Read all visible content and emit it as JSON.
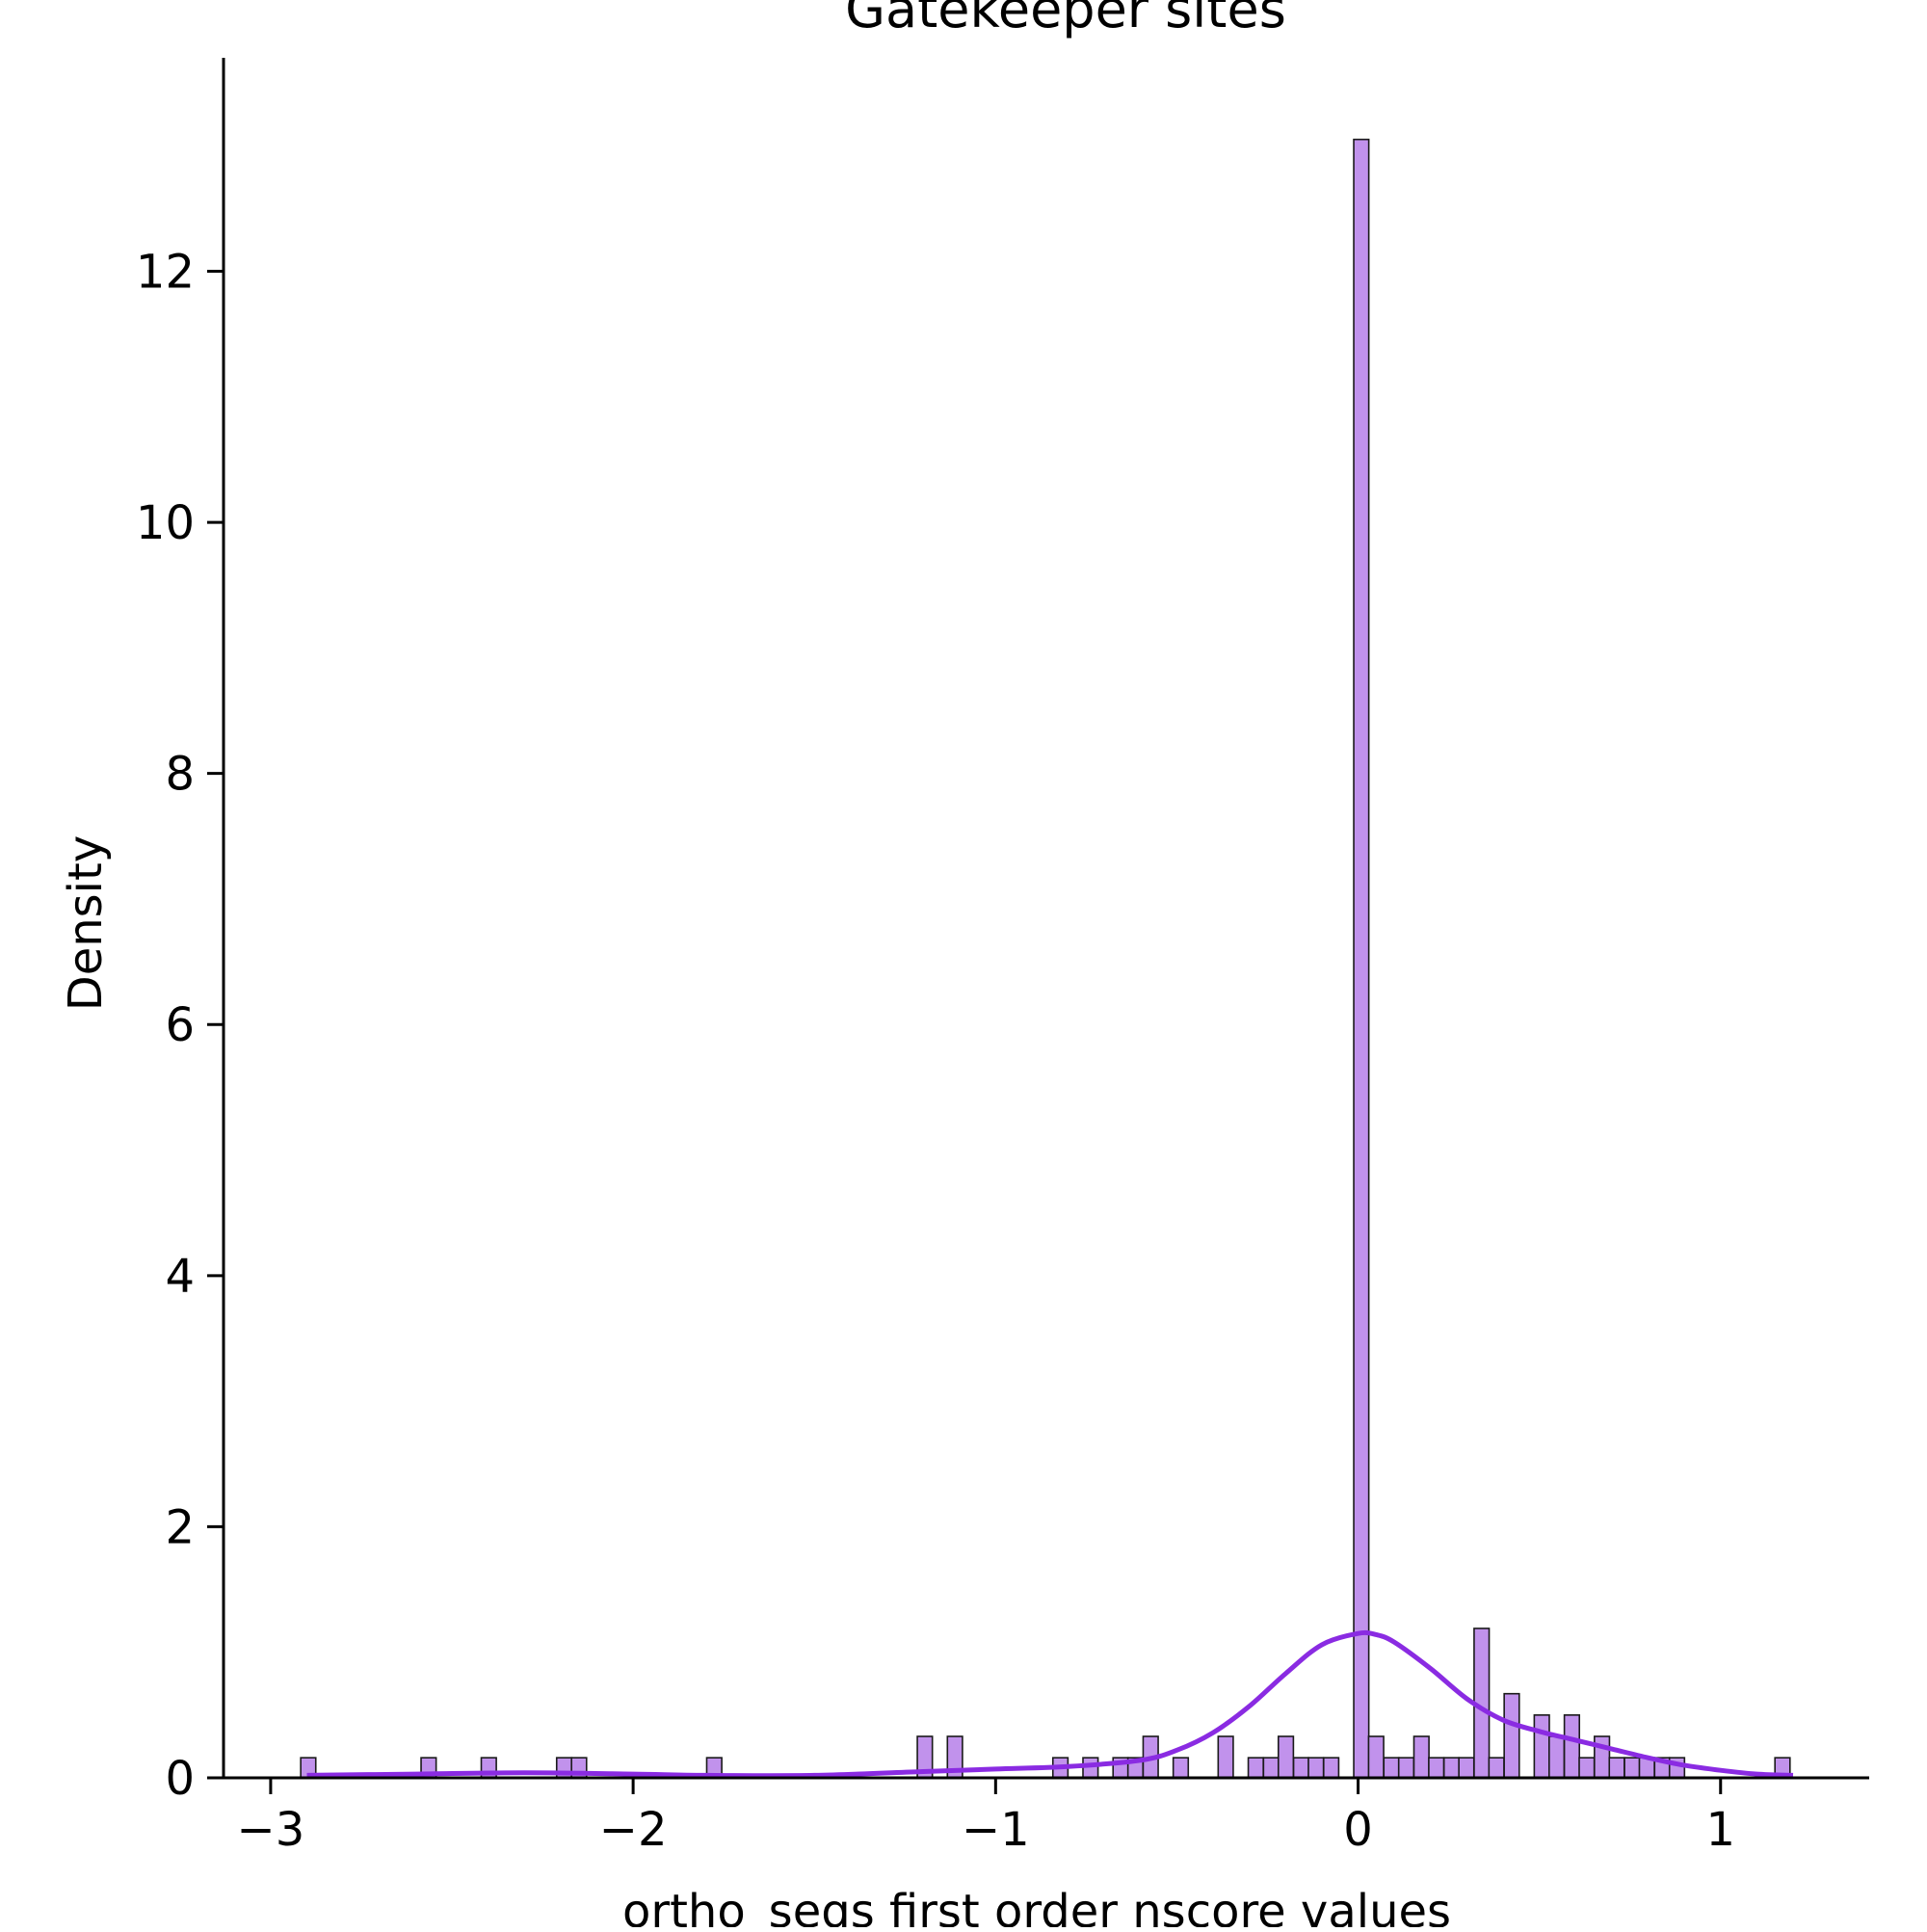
{
  "chart_data": {
    "type": "bar",
    "title": "Gatekeeper sites",
    "xlabel": "ortho_seqs first order nscore values",
    "ylabel": "Density",
    "xlim": [
      -3.13,
      1.41
    ],
    "ylim": [
      0,
      13.7
    ],
    "xticks": [
      -3,
      -2,
      -1,
      0,
      1
    ],
    "xtick_labels": [
      "−3",
      "−2",
      "−1",
      "0",
      "1"
    ],
    "yticks": [
      0,
      2,
      4,
      6,
      8,
      10,
      12
    ],
    "ytick_labels": [
      "0",
      "2",
      "4",
      "6",
      "8",
      "10",
      "12"
    ],
    "grid": false,
    "colors": {
      "bar_fill": "#c192ec",
      "bar_edge": "#1a1a1a",
      "kde_line": "#8a2be2",
      "axis": "#000000"
    },
    "bin_width": 0.0415,
    "histogram": {
      "bin_starts": [
        -2.917,
        -2.585,
        -2.419,
        -2.211,
        -2.17,
        -1.797,
        -1.216,
        -1.133,
        -0.842,
        -0.759,
        -0.676,
        -0.635,
        -0.593,
        -0.51,
        -0.386,
        -0.303,
        -0.261,
        -0.22,
        -0.178,
        -0.137,
        -0.095,
        -0.012,
        0.029,
        0.071,
        0.112,
        0.154,
        0.195,
        0.237,
        0.278,
        0.32,
        0.361,
        0.403,
        0.486,
        0.527,
        0.569,
        0.61,
        0.652,
        0.693,
        0.735,
        0.776,
        0.818,
        0.859,
        1.15
      ],
      "densities": [
        0.16,
        0.16,
        0.16,
        0.16,
        0.16,
        0.16,
        0.33,
        0.33,
        0.16,
        0.16,
        0.16,
        0.16,
        0.33,
        0.16,
        0.33,
        0.16,
        0.16,
        0.33,
        0.16,
        0.16,
        0.16,
        13.05,
        0.33,
        0.16,
        0.16,
        0.33,
        0.16,
        0.16,
        0.16,
        1.19,
        0.16,
        0.67,
        0.5,
        0.33,
        0.5,
        0.16,
        0.33,
        0.16,
        0.16,
        0.16,
        0.16,
        0.16,
        0.16
      ]
    },
    "kde": {
      "x": [
        -2.9,
        -2.6,
        -2.3,
        -2.0,
        -1.8,
        -1.5,
        -1.2,
        -1.0,
        -0.8,
        -0.6,
        -0.5,
        -0.4,
        -0.3,
        -0.2,
        -0.1,
        0.0,
        0.05,
        0.1,
        0.2,
        0.3,
        0.4,
        0.5,
        0.6,
        0.7,
        0.8,
        0.9,
        1.0,
        1.1,
        1.2
      ],
      "y": [
        0.02,
        0.03,
        0.04,
        0.03,
        0.02,
        0.02,
        0.05,
        0.07,
        0.09,
        0.14,
        0.22,
        0.36,
        0.57,
        0.83,
        1.06,
        1.15,
        1.14,
        1.08,
        0.87,
        0.63,
        0.46,
        0.37,
        0.3,
        0.23,
        0.16,
        0.1,
        0.06,
        0.03,
        0.02
      ]
    }
  }
}
